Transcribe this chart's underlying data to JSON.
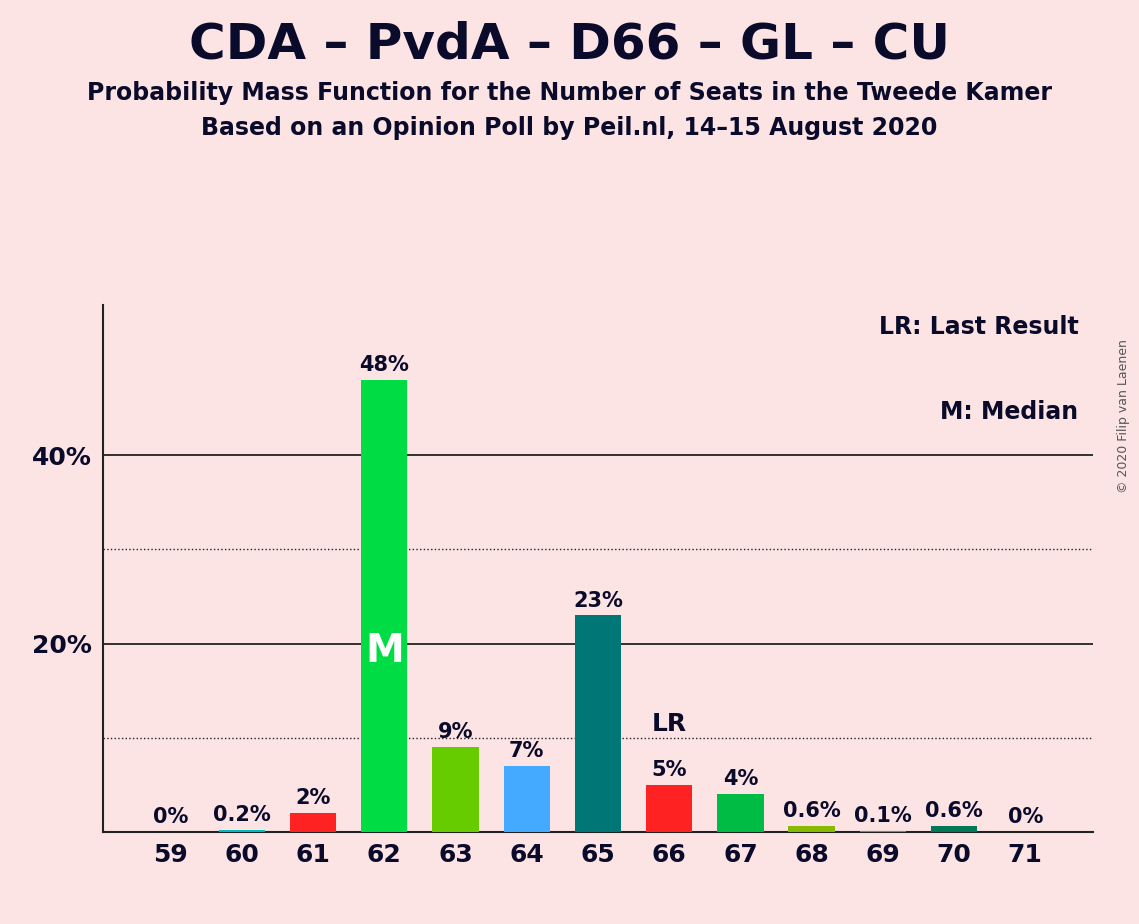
{
  "title": "CDA – PvdA – D66 – GL – CU",
  "subtitle1": "Probability Mass Function for the Number of Seats in the Tweede Kamer",
  "subtitle2": "Based on an Opinion Poll by Peil.nl, 14–15 August 2020",
  "copyright": "© 2020 Filip van Laenen",
  "background_color": "#fce4e4",
  "categories": [
    59,
    60,
    61,
    62,
    63,
    64,
    65,
    66,
    67,
    68,
    69,
    70,
    71
  ],
  "values": [
    0.0,
    0.2,
    2.0,
    48.0,
    9.0,
    7.0,
    23.0,
    5.0,
    4.0,
    0.6,
    0.1,
    0.6,
    0.0
  ],
  "bar_colors": [
    "#00BBBB",
    "#00BBBB",
    "#FF2222",
    "#00DD44",
    "#66CC00",
    "#44AAFF",
    "#007777",
    "#FF2222",
    "#00BB44",
    "#88BB00",
    "#00BBBB",
    "#007755",
    "#007755"
  ],
  "median_bar": 62,
  "last_result_bar": 66,
  "legend_text1": "LR: Last Result",
  "legend_text2": "M: Median",
  "yticks": [
    20,
    40
  ],
  "yticks_dotted": [
    10,
    30
  ],
  "ylim": [
    0,
    56
  ],
  "title_color": "#0a0a2a",
  "bar_text_color": "#0a0a2a",
  "axis_color": "#0a0a2a",
  "title_fontsize": 36,
  "subtitle_fontsize": 17,
  "tick_fontsize": 18,
  "label_fontsize": 15
}
